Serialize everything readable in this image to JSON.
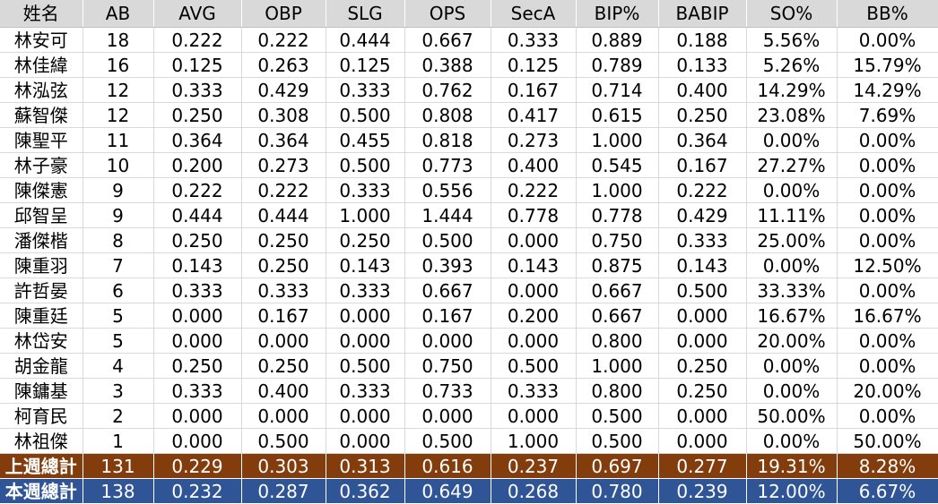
{
  "colors": {
    "header_bg": "#d9d9d9",
    "last_week_total_bg": "#833c0b",
    "this_week_total_bg": "#2f5597",
    "total_text": "#ffffff"
  },
  "columns": [
    "姓名",
    "AB",
    "AVG",
    "OBP",
    "SLG",
    "OPS",
    "SecA",
    "BIP%",
    "BABIP",
    "SO%",
    "BB%"
  ],
  "rows": [
    [
      "林安可",
      "18",
      "0.222",
      "0.222",
      "0.444",
      "0.667",
      "0.333",
      "0.889",
      "0.188",
      "5.56%",
      "0.00%"
    ],
    [
      "林佳緯",
      "16",
      "0.125",
      "0.263",
      "0.125",
      "0.388",
      "0.125",
      "0.789",
      "0.133",
      "5.26%",
      "15.79%"
    ],
    [
      "林泓弦",
      "12",
      "0.333",
      "0.429",
      "0.333",
      "0.762",
      "0.167",
      "0.714",
      "0.400",
      "14.29%",
      "14.29%"
    ],
    [
      "蘇智傑",
      "12",
      "0.250",
      "0.308",
      "0.500",
      "0.808",
      "0.417",
      "0.615",
      "0.250",
      "23.08%",
      "7.69%"
    ],
    [
      "陳聖平",
      "11",
      "0.364",
      "0.364",
      "0.455",
      "0.818",
      "0.273",
      "1.000",
      "0.364",
      "0.00%",
      "0.00%"
    ],
    [
      "林子豪",
      "10",
      "0.200",
      "0.273",
      "0.500",
      "0.773",
      "0.400",
      "0.545",
      "0.167",
      "27.27%",
      "0.00%"
    ],
    [
      "陳傑憲",
      "9",
      "0.222",
      "0.222",
      "0.333",
      "0.556",
      "0.222",
      "1.000",
      "0.222",
      "0.00%",
      "0.00%"
    ],
    [
      "邱智呈",
      "9",
      "0.444",
      "0.444",
      "1.000",
      "1.444",
      "0.778",
      "0.778",
      "0.429",
      "11.11%",
      "0.00%"
    ],
    [
      "潘傑楷",
      "8",
      "0.250",
      "0.250",
      "0.250",
      "0.500",
      "0.000",
      "0.750",
      "0.333",
      "25.00%",
      "0.00%"
    ],
    [
      "陳重羽",
      "7",
      "0.143",
      "0.250",
      "0.143",
      "0.393",
      "0.143",
      "0.875",
      "0.143",
      "0.00%",
      "12.50%"
    ],
    [
      "許哲晏",
      "6",
      "0.333",
      "0.333",
      "0.333",
      "0.667",
      "0.000",
      "0.667",
      "0.500",
      "33.33%",
      "0.00%"
    ],
    [
      "陳重廷",
      "5",
      "0.000",
      "0.167",
      "0.000",
      "0.167",
      "0.200",
      "0.667",
      "0.000",
      "16.67%",
      "16.67%"
    ],
    [
      "林岱安",
      "5",
      "0.000",
      "0.000",
      "0.000",
      "0.000",
      "0.000",
      "0.800",
      "0.000",
      "20.00%",
      "0.00%"
    ],
    [
      "胡金龍",
      "4",
      "0.250",
      "0.250",
      "0.500",
      "0.750",
      "0.500",
      "1.000",
      "0.250",
      "0.00%",
      "0.00%"
    ],
    [
      "陳鏞基",
      "3",
      "0.333",
      "0.400",
      "0.333",
      "0.733",
      "0.333",
      "0.800",
      "0.250",
      "0.00%",
      "20.00%"
    ],
    [
      "柯育民",
      "2",
      "0.000",
      "0.000",
      "0.000",
      "0.000",
      "0.000",
      "0.500",
      "0.000",
      "50.00%",
      "0.00%"
    ],
    [
      "林祖傑",
      "1",
      "0.000",
      "0.500",
      "0.000",
      "0.500",
      "1.000",
      "0.500",
      "0.000",
      "0.00%",
      "50.00%"
    ]
  ],
  "totals": [
    {
      "kind": "last-week",
      "cells": [
        "上週總計",
        "131",
        "0.229",
        "0.303",
        "0.313",
        "0.616",
        "0.237",
        "0.697",
        "0.277",
        "19.31%",
        "8.28%"
      ]
    },
    {
      "kind": "this-week",
      "cells": [
        "本週總計",
        "138",
        "0.232",
        "0.287",
        "0.362",
        "0.649",
        "0.268",
        "0.780",
        "0.239",
        "12.00%",
        "6.67%"
      ]
    }
  ]
}
